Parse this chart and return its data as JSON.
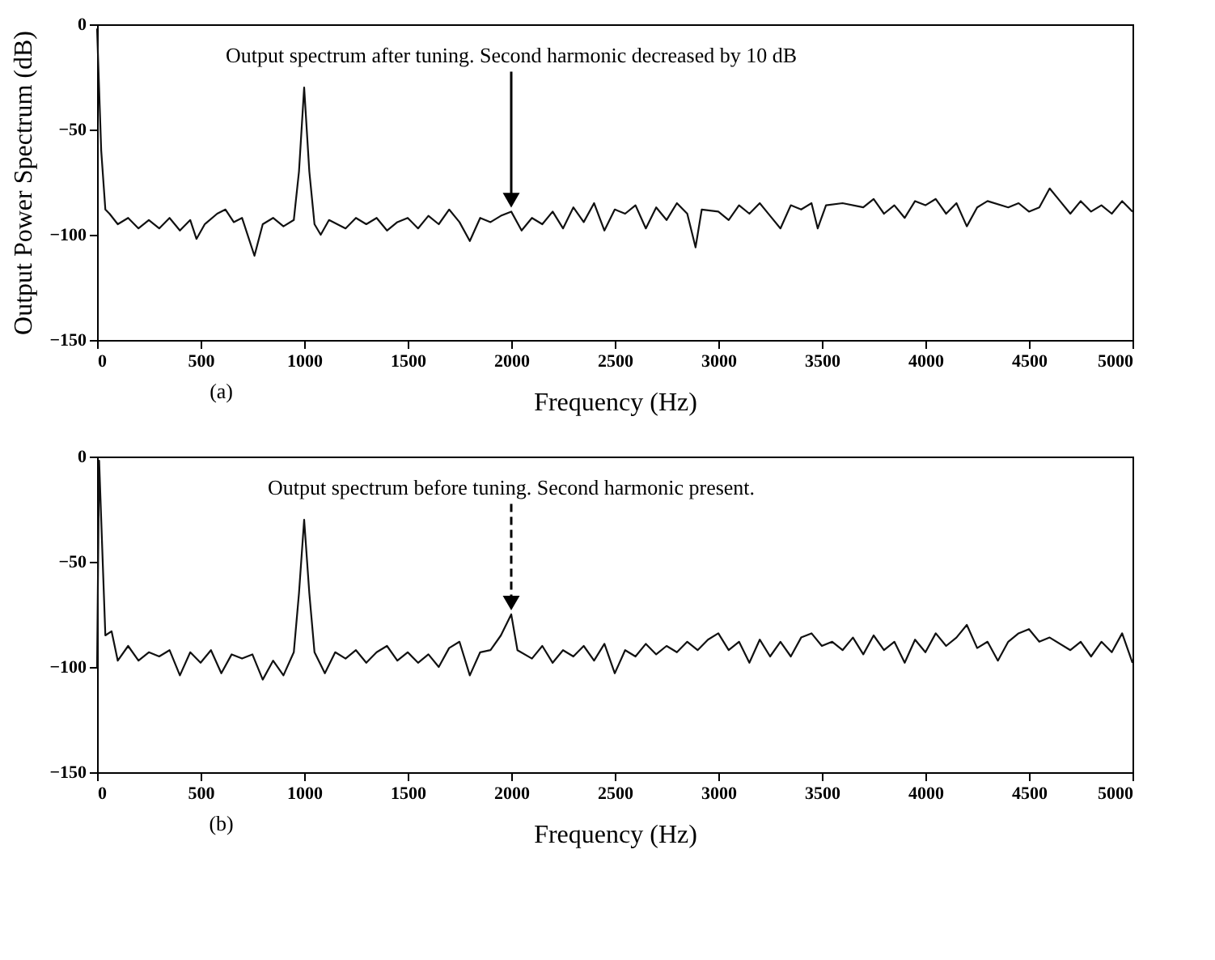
{
  "chart_data": [
    {
      "type": "line",
      "ylabel": "Output Power Spectrum (dB)",
      "xlabel": "Frequency (Hz)",
      "xlim": [
        0,
        5000
      ],
      "ylim": [
        -150,
        0
      ],
      "xticks": [
        0,
        500,
        1000,
        1500,
        2000,
        2500,
        3000,
        3500,
        4000,
        4500,
        5000
      ],
      "yticks": [
        -150,
        -100,
        -50,
        0
      ],
      "grid": false,
      "line_style": "solid",
      "annotations": [
        "(a)",
        {
          "text": "Output spectrum after tuning. Second harmonic decreased by 10 dB",
          "x": 2000,
          "y": -89
        }
      ],
      "x": [
        0,
        20,
        40,
        60,
        100,
        150,
        200,
        250,
        300,
        350,
        400,
        450,
        480,
        520,
        580,
        620,
        660,
        700,
        760,
        800,
        850,
        900,
        950,
        975,
        1000,
        1025,
        1050,
        1080,
        1120,
        1200,
        1250,
        1300,
        1350,
        1400,
        1450,
        1500,
        1550,
        1600,
        1650,
        1700,
        1750,
        1800,
        1850,
        1900,
        1950,
        2000,
        2050,
        2100,
        2150,
        2200,
        2250,
        2300,
        2350,
        2400,
        2450,
        2500,
        2550,
        2600,
        2650,
        2700,
        2750,
        2800,
        2850,
        2890,
        2920,
        3000,
        3050,
        3100,
        3150,
        3200,
        3250,
        3300,
        3350,
        3400,
        3450,
        3480,
        3520,
        3600,
        3700,
        3750,
        3800,
        3850,
        3900,
        3950,
        4000,
        4050,
        4100,
        4150,
        4200,
        4250,
        4300,
        4400,
        4450,
        4500,
        4550,
        4600,
        4650,
        4700,
        4750,
        4800,
        4850,
        4900,
        4950,
        5000
      ],
      "series": [
        {
          "color": "#111111",
          "values": [
            -2,
            -60,
            -88,
            -90,
            -95,
            -92,
            -97,
            -93,
            -97,
            -92,
            -98,
            -93,
            -102,
            -95,
            -90,
            -88,
            -94,
            -92,
            -110,
            -95,
            -92,
            -96,
            -93,
            -70,
            -30,
            -70,
            -95,
            -100,
            -93,
            -97,
            -92,
            -95,
            -92,
            -98,
            -94,
            -92,
            -97,
            -91,
            -95,
            -88,
            -94,
            -103,
            -92,
            -94,
            -91,
            -89,
            -98,
            -92,
            -95,
            -89,
            -97,
            -87,
            -94,
            -85,
            -98,
            -88,
            -90,
            -86,
            -97,
            -87,
            -93,
            -85,
            -90,
            -106,
            -88,
            -89,
            -93,
            -86,
            -90,
            -85,
            -91,
            -97,
            -86,
            -88,
            -85,
            -97,
            -86,
            -85,
            -87,
            -83,
            -90,
            -86,
            -92,
            -84,
            -86,
            -83,
            -90,
            -85,
            -96,
            -87,
            -84,
            -87,
            -85,
            -89,
            -87,
            -78,
            -84,
            -90,
            -84,
            -89,
            -86,
            -90,
            -84,
            -89
          ]
        }
      ]
    },
    {
      "type": "line",
      "xlabel": "Frequency (Hz)",
      "xlim": [
        0,
        5000
      ],
      "ylim": [
        -150,
        0
      ],
      "xticks": [
        0,
        500,
        1000,
        1500,
        2000,
        2500,
        3000,
        3500,
        4000,
        4500,
        5000
      ],
      "yticks": [
        -150,
        -100,
        -50,
        0
      ],
      "grid": false,
      "line_style": "solid",
      "annotations": [
        "(b)",
        {
          "text": "Output spectrum before tuning. Second harmonic present.",
          "x": 2000,
          "y": -75
        }
      ],
      "x": [
        0,
        10,
        20,
        40,
        70,
        100,
        150,
        200,
        250,
        300,
        350,
        400,
        450,
        500,
        550,
        600,
        650,
        700,
        750,
        800,
        850,
        900,
        950,
        975,
        1000,
        1025,
        1050,
        1100,
        1150,
        1200,
        1250,
        1300,
        1350,
        1400,
        1450,
        1500,
        1550,
        1600,
        1650,
        1700,
        1750,
        1800,
        1850,
        1900,
        1950,
        2000,
        2030,
        2100,
        2150,
        2200,
        2250,
        2300,
        2350,
        2400,
        2450,
        2500,
        2550,
        2600,
        2650,
        2700,
        2750,
        2800,
        2850,
        2900,
        2950,
        3000,
        3050,
        3100,
        3150,
        3200,
        3250,
        3300,
        3350,
        3400,
        3450,
        3500,
        3550,
        3600,
        3650,
        3700,
        3750,
        3800,
        3850,
        3900,
        3950,
        4000,
        4050,
        4100,
        4150,
        4200,
        4250,
        4300,
        4350,
        4400,
        4450,
        4500,
        4550,
        4600,
        4700,
        4750,
        4800,
        4850,
        4900,
        4950,
        5000
      ],
      "series": [
        {
          "color": "#111111",
          "values": [
            -100,
            -2,
            -30,
            -85,
            -83,
            -97,
            -90,
            -97,
            -93,
            -95,
            -92,
            -104,
            -93,
            -98,
            -92,
            -103,
            -94,
            -96,
            -94,
            -106,
            -97,
            -104,
            -93,
            -65,
            -30,
            -65,
            -93,
            -103,
            -93,
            -96,
            -92,
            -98,
            -93,
            -90,
            -97,
            -93,
            -98,
            -94,
            -100,
            -91,
            -88,
            -104,
            -93,
            -92,
            -85,
            -75,
            -92,
            -96,
            -90,
            -98,
            -92,
            -95,
            -90,
            -97,
            -89,
            -103,
            -92,
            -95,
            -89,
            -94,
            -90,
            -93,
            -88,
            -92,
            -87,
            -84,
            -92,
            -88,
            -98,
            -87,
            -95,
            -88,
            -95,
            -86,
            -84,
            -90,
            -88,
            -92,
            -86,
            -94,
            -85,
            -92,
            -88,
            -98,
            -87,
            -93,
            -84,
            -90,
            -86,
            -80,
            -91,
            -88,
            -97,
            -88,
            -84,
            -82,
            -88,
            -86,
            -92,
            -88,
            -95,
            -88,
            -93,
            -84,
            -98
          ]
        }
      ]
    }
  ]
}
